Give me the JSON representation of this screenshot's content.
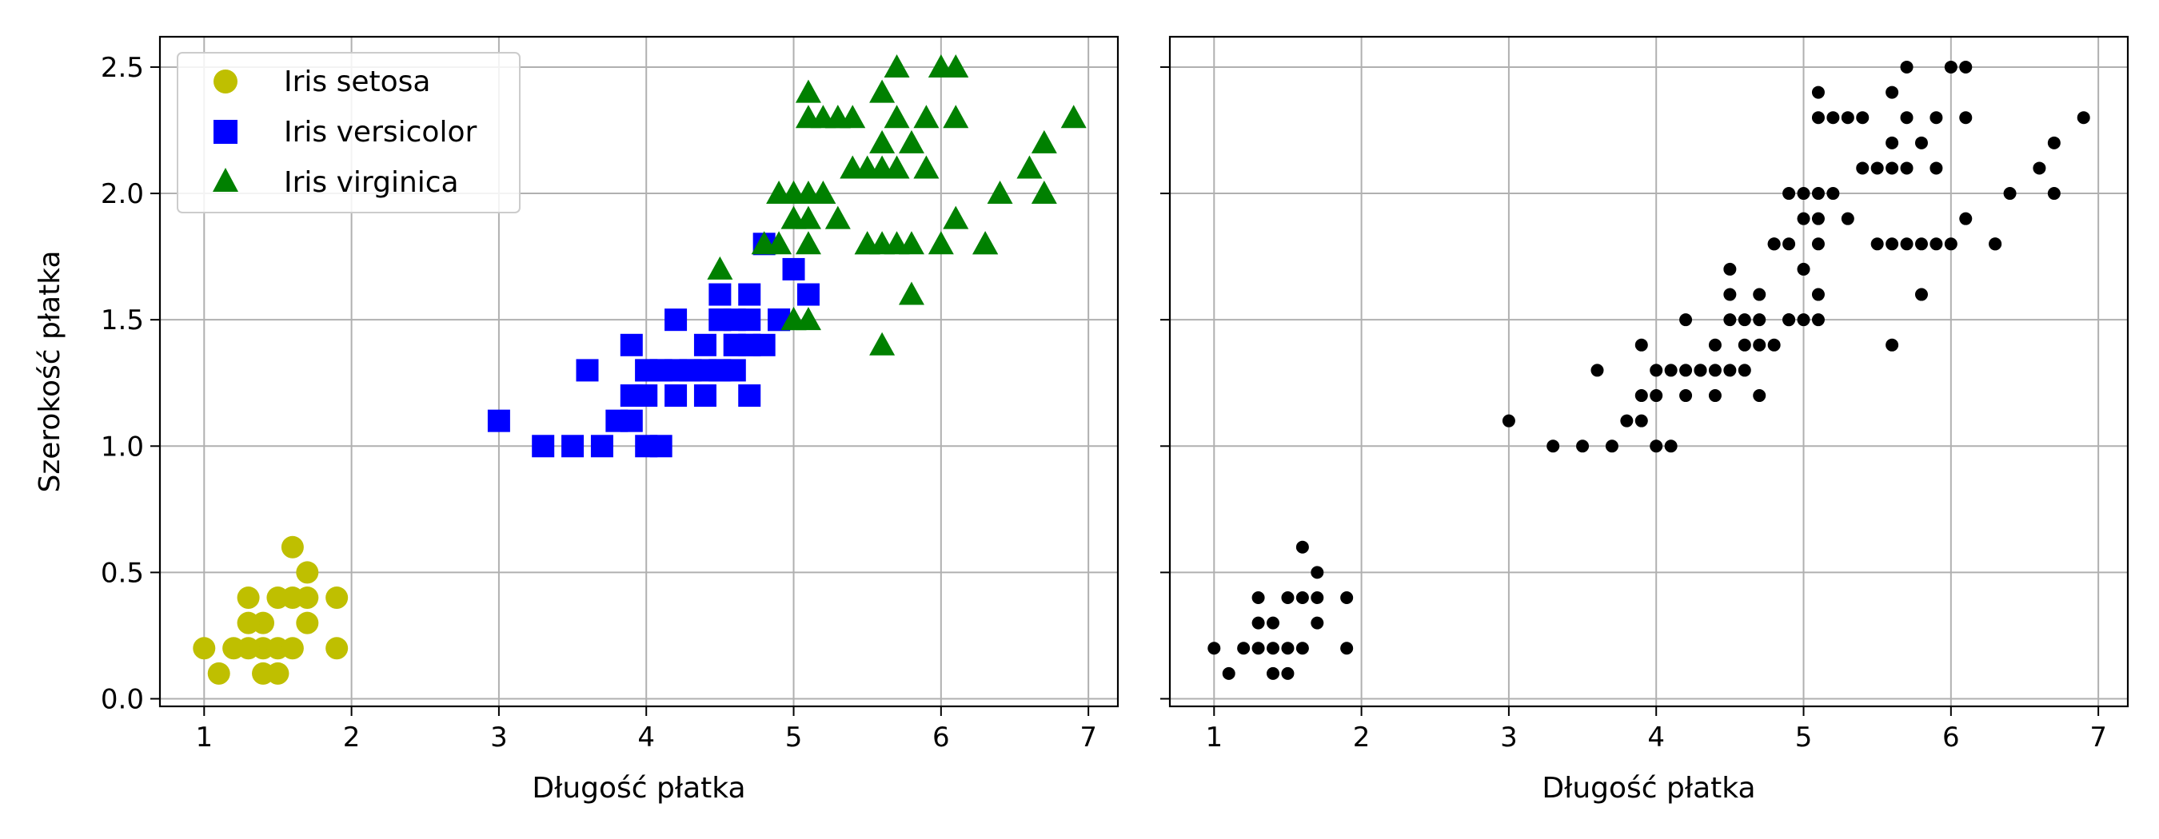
{
  "chart_data": [
    {
      "type": "scatter",
      "xlabel": "Długość płatka",
      "ylabel": "Szerokość płatka",
      "xlim": [
        0.7,
        7.2
      ],
      "ylim": [
        -0.03,
        2.62
      ],
      "xticks": [
        "1",
        "2",
        "3",
        "4",
        "5",
        "6",
        "7"
      ],
      "yticks": [
        "0.0",
        "0.5",
        "1.0",
        "1.5",
        "2.0",
        "2.5"
      ],
      "grid": true,
      "legend_position": "top-left",
      "series": [
        {
          "name": "Iris setosa",
          "marker": "circle",
          "color": "#bfbf00",
          "points": [
            [
              1.4,
              0.2
            ],
            [
              1.3,
              0.2
            ],
            [
              1.5,
              0.2
            ],
            [
              1.7,
              0.4
            ],
            [
              1.4,
              0.3
            ],
            [
              1.5,
              0.1
            ],
            [
              1.6,
              0.2
            ],
            [
              1.1,
              0.1
            ],
            [
              1.2,
              0.2
            ],
            [
              1.5,
              0.4
            ],
            [
              1.3,
              0.4
            ],
            [
              1.7,
              0.3
            ],
            [
              1.0,
              0.2
            ],
            [
              1.7,
              0.5
            ],
            [
              1.9,
              0.2
            ],
            [
              1.6,
              0.4
            ],
            [
              1.6,
              0.6
            ],
            [
              1.9,
              0.4
            ],
            [
              1.4,
              0.1
            ],
            [
              1.3,
              0.3
            ]
          ]
        },
        {
          "name": "Iris versicolor",
          "marker": "square",
          "color": "#0000ff",
          "points": [
            [
              4.7,
              1.4
            ],
            [
              4.5,
              1.5
            ],
            [
              4.9,
              1.5
            ],
            [
              4.0,
              1.3
            ],
            [
              4.6,
              1.5
            ],
            [
              4.5,
              1.3
            ],
            [
              4.7,
              1.6
            ],
            [
              3.3,
              1.0
            ],
            [
              4.6,
              1.3
            ],
            [
              3.9,
              1.4
            ],
            [
              3.5,
              1.0
            ],
            [
              4.2,
              1.5
            ],
            [
              4.0,
              1.0
            ],
            [
              3.6,
              1.3
            ],
            [
              4.4,
              1.4
            ],
            [
              4.1,
              1.0
            ],
            [
              4.5,
              1.5
            ],
            [
              4.8,
              1.8
            ],
            [
              4.0,
              1.3
            ],
            [
              4.9,
              1.5
            ],
            [
              4.7,
              1.2
            ],
            [
              4.3,
              1.3
            ],
            [
              4.8,
              1.4
            ],
            [
              5.0,
              1.7
            ],
            [
              3.8,
              1.1
            ],
            [
              3.7,
              1.0
            ],
            [
              3.9,
              1.2
            ],
            [
              5.1,
              1.6
            ],
            [
              4.5,
              1.6
            ],
            [
              4.7,
              1.5
            ],
            [
              4.4,
              1.3
            ],
            [
              4.1,
              1.3
            ],
            [
              4.4,
              1.2
            ],
            [
              4.6,
              1.4
            ],
            [
              3.0,
              1.1
            ],
            [
              4.2,
              1.3
            ],
            [
              4.2,
              1.2
            ],
            [
              4.3,
              1.3
            ],
            [
              4.1,
              1.3
            ],
            [
              4.0,
              1.2
            ],
            [
              3.9,
              1.1
            ],
            [
              4.6,
              1.4
            ],
            [
              4.5,
              1.3
            ],
            [
              4.7,
              1.4
            ]
          ]
        },
        {
          "name": "Iris virginica",
          "marker": "triangle",
          "color": "#008000",
          "points": [
            [
              6.0,
              2.5
            ],
            [
              5.1,
              1.9
            ],
            [
              5.9,
              2.1
            ],
            [
              5.6,
              1.8
            ],
            [
              5.8,
              2.2
            ],
            [
              6.6,
              2.1
            ],
            [
              4.5,
              1.7
            ],
            [
              6.3,
              1.8
            ],
            [
              6.1,
              2.5
            ],
            [
              5.1,
              2.0
            ],
            [
              5.3,
              1.9
            ],
            [
              5.5,
              2.1
            ],
            [
              5.0,
              2.0
            ],
            [
              5.1,
              2.4
            ],
            [
              5.3,
              2.3
            ],
            [
              5.5,
              1.8
            ],
            [
              6.7,
              2.2
            ],
            [
              6.9,
              2.3
            ],
            [
              5.0,
              1.5
            ],
            [
              5.7,
              2.3
            ],
            [
              4.9,
              2.0
            ],
            [
              6.7,
              2.0
            ],
            [
              4.9,
              1.8
            ],
            [
              5.7,
              2.1
            ],
            [
              6.0,
              1.8
            ],
            [
              4.8,
              1.8
            ],
            [
              5.8,
              1.6
            ],
            [
              6.1,
              1.9
            ],
            [
              6.4,
              2.0
            ],
            [
              5.6,
              2.2
            ],
            [
              5.1,
              1.5
            ],
            [
              5.6,
              1.4
            ],
            [
              6.1,
              2.3
            ],
            [
              5.6,
              2.4
            ],
            [
              5.5,
              1.8
            ],
            [
              5.4,
              2.1
            ],
            [
              5.6,
              2.1
            ],
            [
              5.1,
              2.3
            ],
            [
              5.9,
              2.3
            ],
            [
              5.7,
              2.5
            ],
            [
              5.2,
              2.3
            ],
            [
              5.0,
              1.9
            ],
            [
              5.2,
              2.0
            ],
            [
              5.4,
              2.3
            ],
            [
              5.1,
              1.8
            ],
            [
              5.8,
              1.8
            ],
            [
              6.3,
              1.8
            ],
            [
              5.3,
              2.3
            ],
            [
              5.0,
              1.5
            ],
            [
              5.0,
              2.0
            ],
            [
              5.7,
              1.8
            ]
          ]
        }
      ]
    },
    {
      "type": "scatter",
      "xlabel": "Długość płatka",
      "ylabel": "",
      "xlim": [
        0.7,
        7.2
      ],
      "ylim": [
        -0.03,
        2.62
      ],
      "xticks": [
        "1",
        "2",
        "3",
        "4",
        "5",
        "6",
        "7"
      ],
      "yticks": [
        "",
        "",
        "",
        "",
        "",
        ""
      ],
      "grid": true,
      "series": [
        {
          "name": "",
          "marker": "dot",
          "color": "#000000",
          "points": [
            [
              1.4,
              0.2
            ],
            [
              1.3,
              0.2
            ],
            [
              1.5,
              0.2
            ],
            [
              1.7,
              0.4
            ],
            [
              1.4,
              0.3
            ],
            [
              1.5,
              0.1
            ],
            [
              1.6,
              0.2
            ],
            [
              1.1,
              0.1
            ],
            [
              1.2,
              0.2
            ],
            [
              1.5,
              0.4
            ],
            [
              1.3,
              0.4
            ],
            [
              1.7,
              0.3
            ],
            [
              1.0,
              0.2
            ],
            [
              1.7,
              0.5
            ],
            [
              1.9,
              0.2
            ],
            [
              1.6,
              0.4
            ],
            [
              1.6,
              0.6
            ],
            [
              1.9,
              0.4
            ],
            [
              1.4,
              0.1
            ],
            [
              1.3,
              0.3
            ],
            [
              4.7,
              1.4
            ],
            [
              4.5,
              1.5
            ],
            [
              4.9,
              1.5
            ],
            [
              4.0,
              1.3
            ],
            [
              4.6,
              1.5
            ],
            [
              4.5,
              1.3
            ],
            [
              4.7,
              1.6
            ],
            [
              3.3,
              1.0
            ],
            [
              4.6,
              1.3
            ],
            [
              3.9,
              1.4
            ],
            [
              3.5,
              1.0
            ],
            [
              4.2,
              1.5
            ],
            [
              4.0,
              1.0
            ],
            [
              3.6,
              1.3
            ],
            [
              4.4,
              1.4
            ],
            [
              4.1,
              1.0
            ],
            [
              4.8,
              1.8
            ],
            [
              4.9,
              1.5
            ],
            [
              4.7,
              1.2
            ],
            [
              4.3,
              1.3
            ],
            [
              4.8,
              1.4
            ],
            [
              5.0,
              1.7
            ],
            [
              3.8,
              1.1
            ],
            [
              3.7,
              1.0
            ],
            [
              3.9,
              1.2
            ],
            [
              5.1,
              1.6
            ],
            [
              4.5,
              1.6
            ],
            [
              4.7,
              1.5
            ],
            [
              4.4,
              1.3
            ],
            [
              4.1,
              1.3
            ],
            [
              4.4,
              1.2
            ],
            [
              4.6,
              1.4
            ],
            [
              3.0,
              1.1
            ],
            [
              4.2,
              1.3
            ],
            [
              4.2,
              1.2
            ],
            [
              4.3,
              1.3
            ],
            [
              4.0,
              1.2
            ],
            [
              3.9,
              1.1
            ],
            [
              6.0,
              2.5
            ],
            [
              5.1,
              1.9
            ],
            [
              5.9,
              2.1
            ],
            [
              5.6,
              1.8
            ],
            [
              5.8,
              2.2
            ],
            [
              6.6,
              2.1
            ],
            [
              4.5,
              1.7
            ],
            [
              6.3,
              1.8
            ],
            [
              6.1,
              2.5
            ],
            [
              5.1,
              2.0
            ],
            [
              5.3,
              1.9
            ],
            [
              5.5,
              2.1
            ],
            [
              5.0,
              2.0
            ],
            [
              5.1,
              2.4
            ],
            [
              5.3,
              2.3
            ],
            [
              5.5,
              1.8
            ],
            [
              6.7,
              2.2
            ],
            [
              6.9,
              2.3
            ],
            [
              5.0,
              1.5
            ],
            [
              5.7,
              2.3
            ],
            [
              4.9,
              2.0
            ],
            [
              6.7,
              2.0
            ],
            [
              4.9,
              1.8
            ],
            [
              5.7,
              2.1
            ],
            [
              6.0,
              1.8
            ],
            [
              4.8,
              1.8
            ],
            [
              5.8,
              1.6
            ],
            [
              6.1,
              1.9
            ],
            [
              6.4,
              2.0
            ],
            [
              5.6,
              2.2
            ],
            [
              5.1,
              1.5
            ],
            [
              5.6,
              1.4
            ],
            [
              6.1,
              2.3
            ],
            [
              5.6,
              2.4
            ],
            [
              5.4,
              2.1
            ],
            [
              5.6,
              2.1
            ],
            [
              5.1,
              2.3
            ],
            [
              5.9,
              2.3
            ],
            [
              5.7,
              2.5
            ],
            [
              5.2,
              2.3
            ],
            [
              5.0,
              1.9
            ],
            [
              5.2,
              2.0
            ],
            [
              5.4,
              2.3
            ],
            [
              5.1,
              1.8
            ],
            [
              5.8,
              1.8
            ],
            [
              6.3,
              1.8
            ],
            [
              5.9,
              1.8
            ],
            [
              5.7,
              1.8
            ]
          ]
        }
      ]
    }
  ]
}
